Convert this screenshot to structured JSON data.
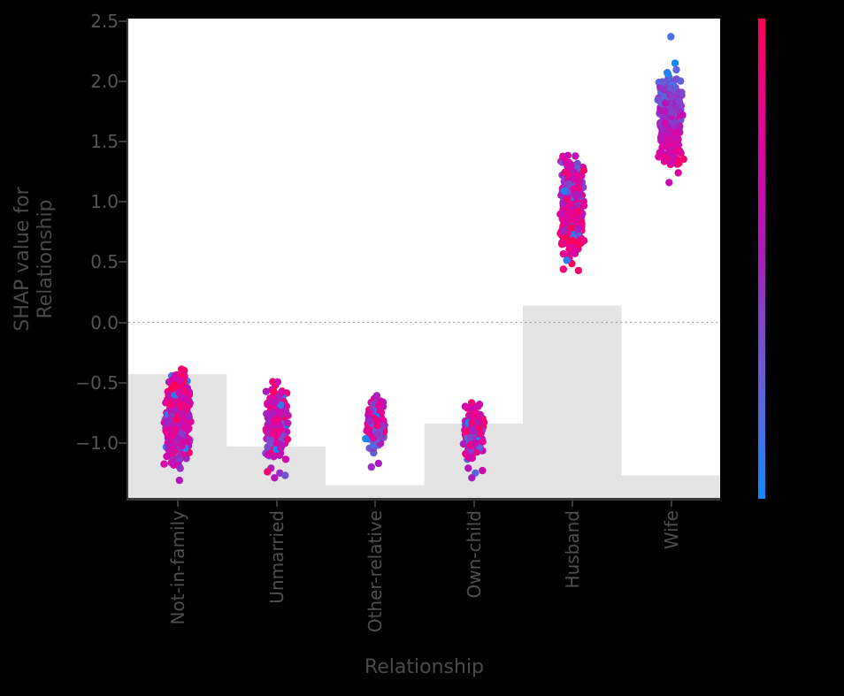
{
  "text": {
    "xlabel": "Relationship",
    "ylabel_line1": "SHAP value for",
    "ylabel_line2": "Relationship"
  },
  "colors": {
    "figure_bg": "#000000",
    "plot_bg": "#ffffff",
    "histogram": "#e4e4e4",
    "zero_line": "#9f9f9f",
    "spine": "#3a3a3a",
    "tick_label": "#555555",
    "axis_label": "#4a4a4a"
  },
  "chart_data": {
    "type": "scatter",
    "subtype": "shap-dependence-categorical",
    "title": "",
    "xlabel": "Relationship",
    "ylabel": "SHAP value for Relationship",
    "categories": [
      "Not-in-family",
      "Unmarried",
      "Other-relative",
      "Own-child",
      "Husband",
      "Wife"
    ],
    "ytick_labels": [
      "2.5",
      "2.0",
      "1.5",
      "1.0",
      "0.5",
      "0.0",
      "−0.5",
      "−1.0"
    ],
    "ytick_values": [
      2.5,
      2.0,
      1.5,
      1.0,
      0.5,
      0.0,
      -0.5,
      -1.0
    ],
    "ylim": [
      -1.456,
      2.52
    ],
    "grid": false,
    "zero_line": 0.0,
    "histogram_baseline": -1.456,
    "histogram_bar_tops": [
      -0.43,
      -1.03,
      -1.35,
      -0.84,
      0.14,
      -1.27
    ],
    "clusters": [
      {
        "category": "Not-in-family",
        "shap_min": -1.25,
        "shap_max": -0.31,
        "points": 560,
        "half_width": 16,
        "t_top": 0.92,
        "t_bottom": 0.48,
        "t_noise": 0.3,
        "extreme_fraction": 0.1
      },
      {
        "category": "Unmarried",
        "shap_min": -1.18,
        "shap_max": -0.46,
        "points": 280,
        "half_width": 14,
        "t_top": 0.88,
        "t_bottom": 0.48,
        "t_noise": 0.32,
        "extreme_fraction": 0.1
      },
      {
        "category": "Other-relative",
        "shap_min": -1.12,
        "shap_max": -0.55,
        "points": 140,
        "half_width": 12,
        "t_top": 0.74,
        "t_bottom": 0.46,
        "t_noise": 0.34,
        "extreme_fraction": 0.12
      },
      {
        "category": "Own-child",
        "shap_min": -1.18,
        "shap_max": -0.63,
        "points": 190,
        "half_width": 13,
        "t_top": 0.8,
        "t_bottom": 0.42,
        "t_noise": 0.32,
        "extreme_fraction": 0.12
      },
      {
        "category": "Husband",
        "shap_min": 0.47,
        "shap_max": 1.45,
        "points": 520,
        "half_width": 14,
        "t_top": 0.45,
        "t_bottom": 0.9,
        "t_noise": 0.3,
        "extreme_fraction": 0.08
      },
      {
        "category": "Wife",
        "shap_min": 1.2,
        "shap_max": 2.19,
        "points": 400,
        "half_width": 15,
        "t_top": 0.08,
        "t_bottom": 0.92,
        "t_noise": 0.18,
        "extreme_fraction": 0.0
      }
    ],
    "outliers": [
      {
        "category": "Wife",
        "shap": 2.37,
        "t": 0.15,
        "dx": 0
      },
      {
        "category": "Wife",
        "shap": 1.16,
        "t": 0.62,
        "dx": -2
      },
      {
        "category": "Husband",
        "shap": 0.44,
        "t": 0.88,
        "dx": -10
      },
      {
        "category": "Husband",
        "shap": 0.43,
        "t": 0.93,
        "dx": 7
      },
      {
        "category": "Not-in-family",
        "shap": -1.31,
        "t": 0.55,
        "dx": 2
      },
      {
        "category": "Unmarried",
        "shap": -1.21,
        "t": 0.5,
        "dx": -6
      },
      {
        "category": "Unmarried",
        "shap": -1.25,
        "t": 0.45,
        "dx": 4
      },
      {
        "category": "Unmarried",
        "shap": -1.29,
        "t": 0.55,
        "dx": -2
      },
      {
        "category": "Unmarried",
        "shap": -1.24,
        "t": 0.9,
        "dx": -10
      },
      {
        "category": "Unmarried",
        "shap": -1.27,
        "t": 0.3,
        "dx": 10
      },
      {
        "category": "Other-relative",
        "shap": -1.17,
        "t": 0.5,
        "dx": 4
      },
      {
        "category": "Other-relative",
        "shap": -1.2,
        "t": 0.45,
        "dx": -4
      },
      {
        "category": "Own-child",
        "shap": -1.21,
        "t": 0.55,
        "dx": -6
      },
      {
        "category": "Own-child",
        "shap": -1.25,
        "t": 0.2,
        "dx": 2
      },
      {
        "category": "Own-child",
        "shap": -1.29,
        "t": 0.5,
        "dx": -2
      },
      {
        "category": "Own-child",
        "shap": -1.23,
        "t": 0.62,
        "dx": 10
      }
    ],
    "colormap": [
      {
        "t": 0.0,
        "color": "#0e8bfa"
      },
      {
        "t": 0.2,
        "color": "#5a68dd"
      },
      {
        "t": 0.38,
        "color": "#8641ca"
      },
      {
        "t": 0.5,
        "color": "#a81dbd"
      },
      {
        "t": 0.62,
        "color": "#c90bb0"
      },
      {
        "t": 0.8,
        "color": "#e80195"
      },
      {
        "t": 1.0,
        "color": "#ff0156"
      }
    ],
    "colorbar": {
      "orientation": "vertical",
      "high_end": "top",
      "label": ""
    },
    "legend": null
  }
}
